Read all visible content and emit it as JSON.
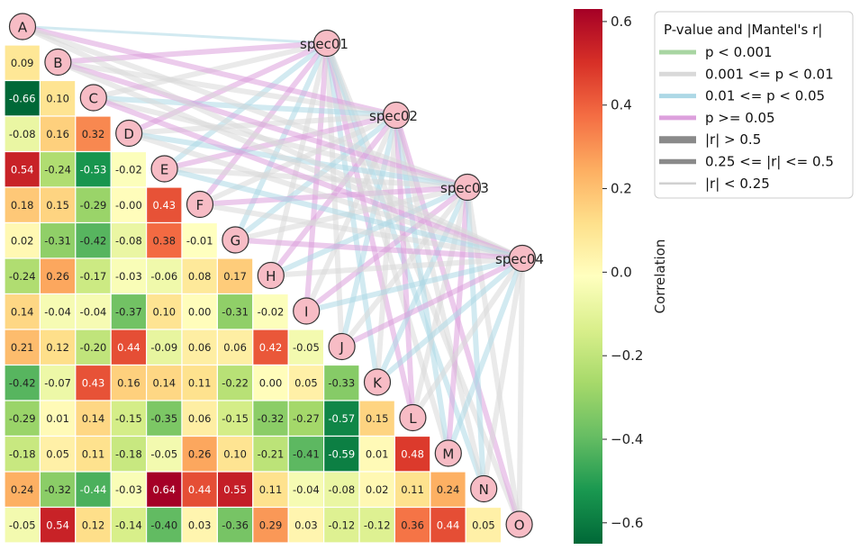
{
  "chart_data": {
    "type": "heatmap",
    "subtype": "mantel-test correlation plot",
    "variables": [
      "A",
      "B",
      "C",
      "D",
      "E",
      "F",
      "G",
      "H",
      "I",
      "J",
      "K",
      "L",
      "M",
      "N",
      "O"
    ],
    "matrix_lower": [
      [],
      [
        0.09
      ],
      [
        -0.66,
        0.1
      ],
      [
        -0.08,
        0.16,
        0.32
      ],
      [
        0.54,
        -0.24,
        -0.53,
        -0.02
      ],
      [
        0.18,
        0.15,
        -0.29,
        -0.0,
        0.43
      ],
      [
        0.02,
        -0.31,
        -0.42,
        -0.08,
        0.38,
        -0.01
      ],
      [
        -0.24,
        0.26,
        -0.17,
        -0.03,
        -0.06,
        0.08,
        0.17
      ],
      [
        0.14,
        -0.04,
        -0.04,
        -0.37,
        0.1,
        0.0,
        -0.31,
        -0.02
      ],
      [
        0.21,
        0.12,
        -0.2,
        0.44,
        -0.09,
        0.06,
        0.06,
        0.42,
        -0.05
      ],
      [
        -0.42,
        -0.07,
        0.43,
        0.16,
        0.14,
        0.11,
        -0.22,
        0.0,
        0.05,
        -0.33
      ],
      [
        -0.29,
        0.01,
        0.14,
        -0.15,
        -0.35,
        0.06,
        -0.15,
        -0.32,
        -0.27,
        -0.57,
        0.15
      ],
      [
        -0.18,
        0.05,
        0.11,
        -0.18,
        -0.05,
        0.26,
        0.1,
        -0.21,
        -0.41,
        -0.59,
        0.01,
        0.48
      ],
      [
        0.24,
        -0.32,
        -0.44,
        -0.03,
        0.64,
        0.44,
        0.55,
        0.11,
        -0.04,
        -0.08,
        0.02,
        0.11,
        0.24
      ],
      [
        -0.05,
        0.54,
        0.12,
        -0.14,
        -0.4,
        0.03,
        -0.36,
        0.29,
        0.03,
        -0.12,
        -0.12,
        0.36,
        0.44,
        0.05
      ]
    ],
    "display_values": [
      [],
      [
        "0.09"
      ],
      [
        "-0.66",
        "0.10"
      ],
      [
        "-0.08",
        "0.16",
        "0.32"
      ],
      [
        "0.54",
        "-0.24",
        "-0.53",
        "-0.02"
      ],
      [
        "0.18",
        "0.15",
        "-0.29",
        "-0.00",
        "0.43"
      ],
      [
        "0.02",
        "-0.31",
        "-0.42",
        "-0.08",
        "0.38",
        "-0.01"
      ],
      [
        "-0.24",
        "0.26",
        "-0.17",
        "-0.03",
        "-0.06",
        "0.08",
        "0.17"
      ],
      [
        "0.14",
        "-0.04",
        "-0.04",
        "-0.37",
        "0.10",
        "0.00",
        "-0.31",
        "-0.02"
      ],
      [
        "0.21",
        "0.12",
        "-0.20",
        "0.44",
        "-0.09",
        "0.06",
        "0.06",
        "0.42",
        "-0.05"
      ],
      [
        "-0.42",
        "-0.07",
        "0.43",
        "0.16",
        "0.14",
        "0.11",
        "-0.22",
        "0.00",
        "0.05",
        "-0.33"
      ],
      [
        "-0.29",
        "0.01",
        "0.14",
        "-0.15",
        "-0.35",
        "0.06",
        "-0.15",
        "-0.32",
        "-0.27",
        "-0.57",
        "0.15"
      ],
      [
        "-0.18",
        "0.05",
        "0.11",
        "-0.18",
        "-0.05",
        "0.26",
        "0.10",
        "-0.21",
        "-0.41",
        "-0.59",
        "0.01",
        "0.48"
      ],
      [
        "0.24",
        "-0.32",
        "-0.44",
        "-0.03",
        "0.64",
        "0.44",
        "0.55",
        "0.11",
        "-0.04",
        "-0.08",
        "0.02",
        "0.11",
        "0.24"
      ],
      [
        "-0.05",
        "0.54",
        "0.12",
        "-0.14",
        "-0.40",
        "0.03",
        "-0.36",
        "0.29",
        "0.03",
        "-0.12",
        "-0.12",
        "0.36",
        "0.44",
        "0.05"
      ]
    ],
    "specs": [
      "spec01",
      "spec02",
      "spec03",
      "spec04"
    ],
    "colorbar": {
      "label": "Correlation",
      "colormap": "RdYlGn_r",
      "range": [
        -0.65,
        0.63
      ],
      "ticks": [
        0.6,
        0.4,
        0.2,
        0.0,
        -0.2,
        -0.4,
        -0.6
      ],
      "tick_labels": [
        "0.6",
        "0.4",
        "0.2",
        "0.0",
        "−0.2",
        "−0.4",
        "−0.6"
      ]
    },
    "legend": {
      "title": "P-value and |Mantel's r|",
      "placement": "top-right",
      "color_entries": [
        {
          "label": "p < 0.001",
          "color": "#a8d5a2"
        },
        {
          "label": "0.001 <= p < 0.01",
          "color": "#d9d9d9"
        },
        {
          "label": "0.01 <= p < 0.05",
          "color": "#add8e6"
        },
        {
          "label": "p >= 0.05",
          "color": "#dda0dd"
        }
      ],
      "width_entries": [
        {
          "label": "|r| > 0.5",
          "width_class": "thick"
        },
        {
          "label": "0.25 <= |r| <= 0.5",
          "width_class": "medium"
        },
        {
          "label": "|r| < 0.25",
          "width_class": "thin"
        }
      ]
    },
    "connections": [
      {
        "spec": "spec01",
        "target": "A",
        "p_class": "blue",
        "r_class": "thin"
      },
      {
        "spec": "spec01",
        "target": "B",
        "p_class": "pink",
        "r_class": "medium"
      },
      {
        "spec": "spec01",
        "target": "C",
        "p_class": "gray",
        "r_class": "medium"
      },
      {
        "spec": "spec01",
        "target": "D",
        "p_class": "pink",
        "r_class": "medium"
      },
      {
        "spec": "spec01",
        "target": "E",
        "p_class": "blue",
        "r_class": "medium"
      },
      {
        "spec": "spec01",
        "target": "F",
        "p_class": "pink",
        "r_class": "medium"
      },
      {
        "spec": "spec01",
        "target": "G",
        "p_class": "blue",
        "r_class": "medium"
      },
      {
        "spec": "spec01",
        "target": "H",
        "p_class": "gray",
        "r_class": "medium"
      },
      {
        "spec": "spec01",
        "target": "I",
        "p_class": "pink",
        "r_class": "medium"
      },
      {
        "spec": "spec01",
        "target": "J",
        "p_class": "gray",
        "r_class": "medium"
      },
      {
        "spec": "spec01",
        "target": "K",
        "p_class": "blue",
        "r_class": "medium"
      },
      {
        "spec": "spec01",
        "target": "L",
        "p_class": "pink",
        "r_class": "medium"
      },
      {
        "spec": "spec01",
        "target": "M",
        "p_class": "gray",
        "r_class": "medium"
      },
      {
        "spec": "spec01",
        "target": "N",
        "p_class": "blue",
        "r_class": "medium"
      },
      {
        "spec": "spec01",
        "target": "O",
        "p_class": "gray",
        "r_class": "medium"
      },
      {
        "spec": "spec02",
        "target": "A",
        "p_class": "pink",
        "r_class": "medium"
      },
      {
        "spec": "spec02",
        "target": "B",
        "p_class": "gray",
        "r_class": "medium"
      },
      {
        "spec": "spec02",
        "target": "C",
        "p_class": "blue",
        "r_class": "medium"
      },
      {
        "spec": "spec02",
        "target": "D",
        "p_class": "gray",
        "r_class": "medium"
      },
      {
        "spec": "spec02",
        "target": "E",
        "p_class": "pink",
        "r_class": "medium"
      },
      {
        "spec": "spec02",
        "target": "F",
        "p_class": "gray",
        "r_class": "medium"
      },
      {
        "spec": "spec02",
        "target": "G",
        "p_class": "blue",
        "r_class": "medium"
      },
      {
        "spec": "spec02",
        "target": "H",
        "p_class": "pink",
        "r_class": "medium"
      },
      {
        "spec": "spec02",
        "target": "I",
        "p_class": "gray",
        "r_class": "medium"
      },
      {
        "spec": "spec02",
        "target": "J",
        "p_class": "blue",
        "r_class": "medium"
      },
      {
        "spec": "spec02",
        "target": "K",
        "p_class": "gray",
        "r_class": "medium"
      },
      {
        "spec": "spec02",
        "target": "L",
        "p_class": "pink",
        "r_class": "medium"
      },
      {
        "spec": "spec02",
        "target": "M",
        "p_class": "blue",
        "r_class": "medium"
      },
      {
        "spec": "spec02",
        "target": "N",
        "p_class": "gray",
        "r_class": "medium"
      },
      {
        "spec": "spec02",
        "target": "O",
        "p_class": "pink",
        "r_class": "medium"
      },
      {
        "spec": "spec03",
        "target": "A",
        "p_class": "gray",
        "r_class": "medium"
      },
      {
        "spec": "spec03",
        "target": "B",
        "p_class": "pink",
        "r_class": "medium"
      },
      {
        "spec": "spec03",
        "target": "C",
        "p_class": "gray",
        "r_class": "medium"
      },
      {
        "spec": "spec03",
        "target": "D",
        "p_class": "blue",
        "r_class": "medium"
      },
      {
        "spec": "spec03",
        "target": "E",
        "p_class": "gray",
        "r_class": "medium"
      },
      {
        "spec": "spec03",
        "target": "F",
        "p_class": "pink",
        "r_class": "medium"
      },
      {
        "spec": "spec03",
        "target": "G",
        "p_class": "gray",
        "r_class": "medium"
      },
      {
        "spec": "spec03",
        "target": "H",
        "p_class": "blue",
        "r_class": "medium"
      },
      {
        "spec": "spec03",
        "target": "I",
        "p_class": "pink",
        "r_class": "medium"
      },
      {
        "spec": "spec03",
        "target": "J",
        "p_class": "gray",
        "r_class": "medium"
      },
      {
        "spec": "spec03",
        "target": "K",
        "p_class": "blue",
        "r_class": "medium"
      },
      {
        "spec": "spec03",
        "target": "L",
        "p_class": "gray",
        "r_class": "medium"
      },
      {
        "spec": "spec03",
        "target": "M",
        "p_class": "pink",
        "r_class": "medium"
      },
      {
        "spec": "spec03",
        "target": "N",
        "p_class": "blue",
        "r_class": "medium"
      },
      {
        "spec": "spec03",
        "target": "O",
        "p_class": "gray",
        "r_class": "medium"
      },
      {
        "spec": "spec04",
        "target": "A",
        "p_class": "gray",
        "r_class": "medium"
      },
      {
        "spec": "spec04",
        "target": "B",
        "p_class": "gray",
        "r_class": "medium"
      },
      {
        "spec": "spec04",
        "target": "C",
        "p_class": "pink",
        "r_class": "medium"
      },
      {
        "spec": "spec04",
        "target": "D",
        "p_class": "gray",
        "r_class": "medium"
      },
      {
        "spec": "spec04",
        "target": "E",
        "p_class": "blue",
        "r_class": "medium"
      },
      {
        "spec": "spec04",
        "target": "F",
        "p_class": "gray",
        "r_class": "medium"
      },
      {
        "spec": "spec04",
        "target": "G",
        "p_class": "pink",
        "r_class": "medium"
      },
      {
        "spec": "spec04",
        "target": "H",
        "p_class": "gray",
        "r_class": "medium"
      },
      {
        "spec": "spec04",
        "target": "I",
        "p_class": "blue",
        "r_class": "medium"
      },
      {
        "spec": "spec04",
        "target": "J",
        "p_class": "pink",
        "r_class": "medium"
      },
      {
        "spec": "spec04",
        "target": "K",
        "p_class": "blue",
        "r_class": "medium"
      },
      {
        "spec": "spec04",
        "target": "L",
        "p_class": "gray",
        "r_class": "medium"
      },
      {
        "spec": "spec04",
        "target": "M",
        "p_class": "blue",
        "r_class": "medium"
      },
      {
        "spec": "spec04",
        "target": "N",
        "p_class": "gray",
        "r_class": "medium"
      },
      {
        "spec": "spec04",
        "target": "O",
        "p_class": "gray",
        "r_class": "medium"
      }
    ],
    "colors": {
      "node_fill": "#f7bcc5",
      "node_stroke": "#333333",
      "p_blue": "#add8e6",
      "p_gray": "#d9d9d9",
      "p_pink": "#dda0dd",
      "p_green": "#a8d5a2"
    }
  }
}
